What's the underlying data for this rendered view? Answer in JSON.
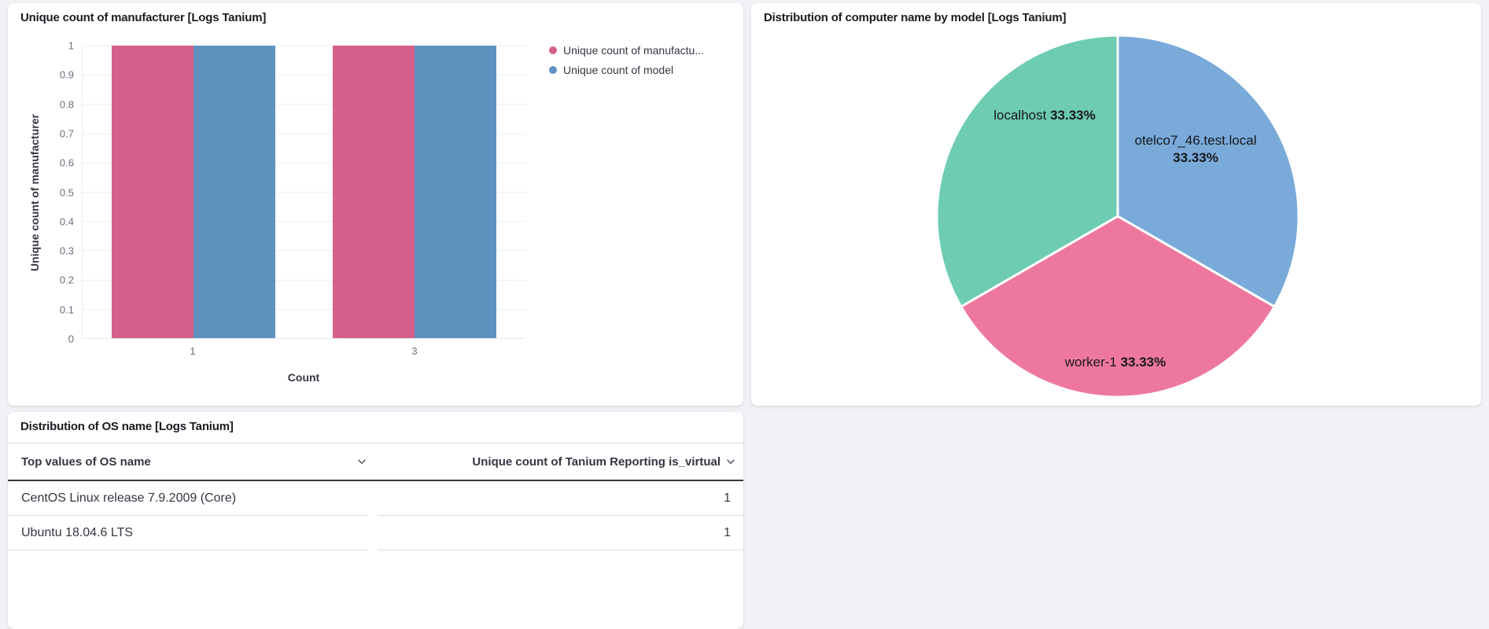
{
  "page": {
    "background": "#f0f2f6"
  },
  "chart_data": [
    {
      "type": "bar",
      "title": "Unique count of manufacturer [Logs Tanium]",
      "xlabel": "Count",
      "ylabel": "Unique count of manufacturer",
      "categories": [
        "1",
        "3"
      ],
      "series": [
        {
          "name": "Unique count of manufacturer",
          "color": "#d4608b",
          "values": [
            1,
            1
          ]
        },
        {
          "name": "Unique count of model",
          "color": "#6092c0",
          "values": [
            1,
            1
          ]
        }
      ],
      "legend": [
        {
          "label": "Unique count of manufactu...",
          "color": "#d4608b"
        },
        {
          "label": "Unique count of model",
          "color": "#6092c0"
        }
      ],
      "ylim": [
        0,
        1
      ],
      "yticks": [
        0,
        0.1,
        0.2,
        0.3,
        0.4,
        0.5,
        0.6,
        0.7,
        0.8,
        0.9,
        1
      ],
      "grid": "horizontal-dashed",
      "legend_position": "right"
    },
    {
      "type": "pie",
      "title": "Distribution of computer name by model [Logs Tanium]",
      "direction": "clockwise-from-top",
      "slices": [
        {
          "label": "otelco7_46.test.local",
          "value": 33.33,
          "pct_label": "33.33%",
          "color": "#79aad9",
          "label_layout": "stacked"
        },
        {
          "label": "worker-1",
          "value": 33.33,
          "pct_label": "33.33%",
          "color": "#ee789d",
          "label_layout": "inline"
        },
        {
          "label": "localhost",
          "value": 33.33,
          "pct_label": "33.33%",
          "color": "#6dccb1",
          "label_layout": "inline"
        }
      ]
    },
    {
      "type": "table",
      "title": "Distribution of OS name [Logs Tanium]",
      "columns": [
        {
          "label": "Top values of OS name",
          "align": "left",
          "sortable": true
        },
        {
          "label": "Unique count of Tanium Reporting is_virtual",
          "align": "right",
          "sortable": true
        }
      ],
      "rows": [
        [
          "CentOS Linux release 7.9.2009 (Core)",
          "1"
        ],
        [
          "Ubuntu 18.04.6 LTS",
          "1"
        ]
      ]
    }
  ]
}
